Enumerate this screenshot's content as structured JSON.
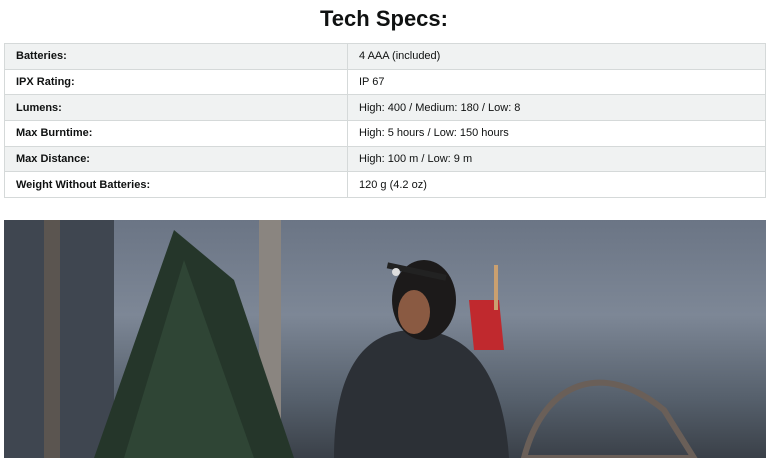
{
  "heading": "Tech Specs:",
  "specs": [
    {
      "label": "Batteries:",
      "value": "4 AAA (included)"
    },
    {
      "label": "IPX Rating:",
      "value": "IP 67"
    },
    {
      "label": "Lumens:",
      "value": "High: 400 / Medium: 180 / Low: 8"
    },
    {
      "label": "Max Burntime:",
      "value": "High: 5 hours / Low: 150 hours"
    },
    {
      "label": "Max Distance:",
      "value": "High: 100 m / Low: 9 m"
    },
    {
      "label": "Weight Without Batteries:",
      "value": "120 g (4.2 oz)"
    }
  ],
  "colors": {
    "row_alt": "#f0f2f2",
    "border": "#d5d9d9"
  }
}
